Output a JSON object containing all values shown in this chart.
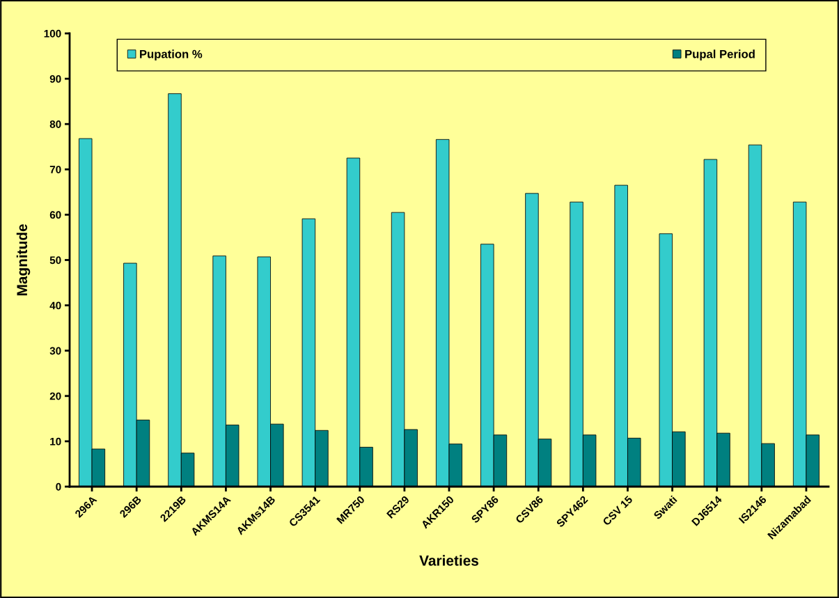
{
  "chart_data": {
    "type": "bar",
    "xlabel": "Varieties",
    "ylabel": "Magnitude",
    "categories": [
      "296A",
      "296B",
      "2219B",
      "AKMS14A",
      "AKMs14B",
      "CS3541",
      "MR750",
      "RS29",
      "AKR150",
      "SPY86",
      "CSV86",
      "SPY462",
      "CSV 15",
      "Swati",
      "DJ6514",
      "IS2146",
      "Nizamabad"
    ],
    "series": [
      {
        "name": "Pupation %",
        "color": "#33cccc",
        "values": [
          76.8,
          49.3,
          86.7,
          50.9,
          50.7,
          59.1,
          72.5,
          60.5,
          76.6,
          53.5,
          64.7,
          62.8,
          66.5,
          55.8,
          72.2,
          75.4,
          62.8
        ]
      },
      {
        "name": "Pupal Period",
        "color": "#008080",
        "values": [
          8.3,
          14.7,
          7.4,
          13.6,
          13.8,
          12.4,
          8.7,
          12.6,
          9.4,
          11.4,
          10.5,
          11.4,
          10.7,
          12.1,
          11.8,
          9.5,
          11.4
        ]
      }
    ],
    "ylim": [
      0,
      100
    ],
    "yticks": [
      0,
      10,
      20,
      30,
      40,
      50,
      60,
      70,
      80,
      90,
      100
    ],
    "grid": false,
    "legend": "top"
  }
}
